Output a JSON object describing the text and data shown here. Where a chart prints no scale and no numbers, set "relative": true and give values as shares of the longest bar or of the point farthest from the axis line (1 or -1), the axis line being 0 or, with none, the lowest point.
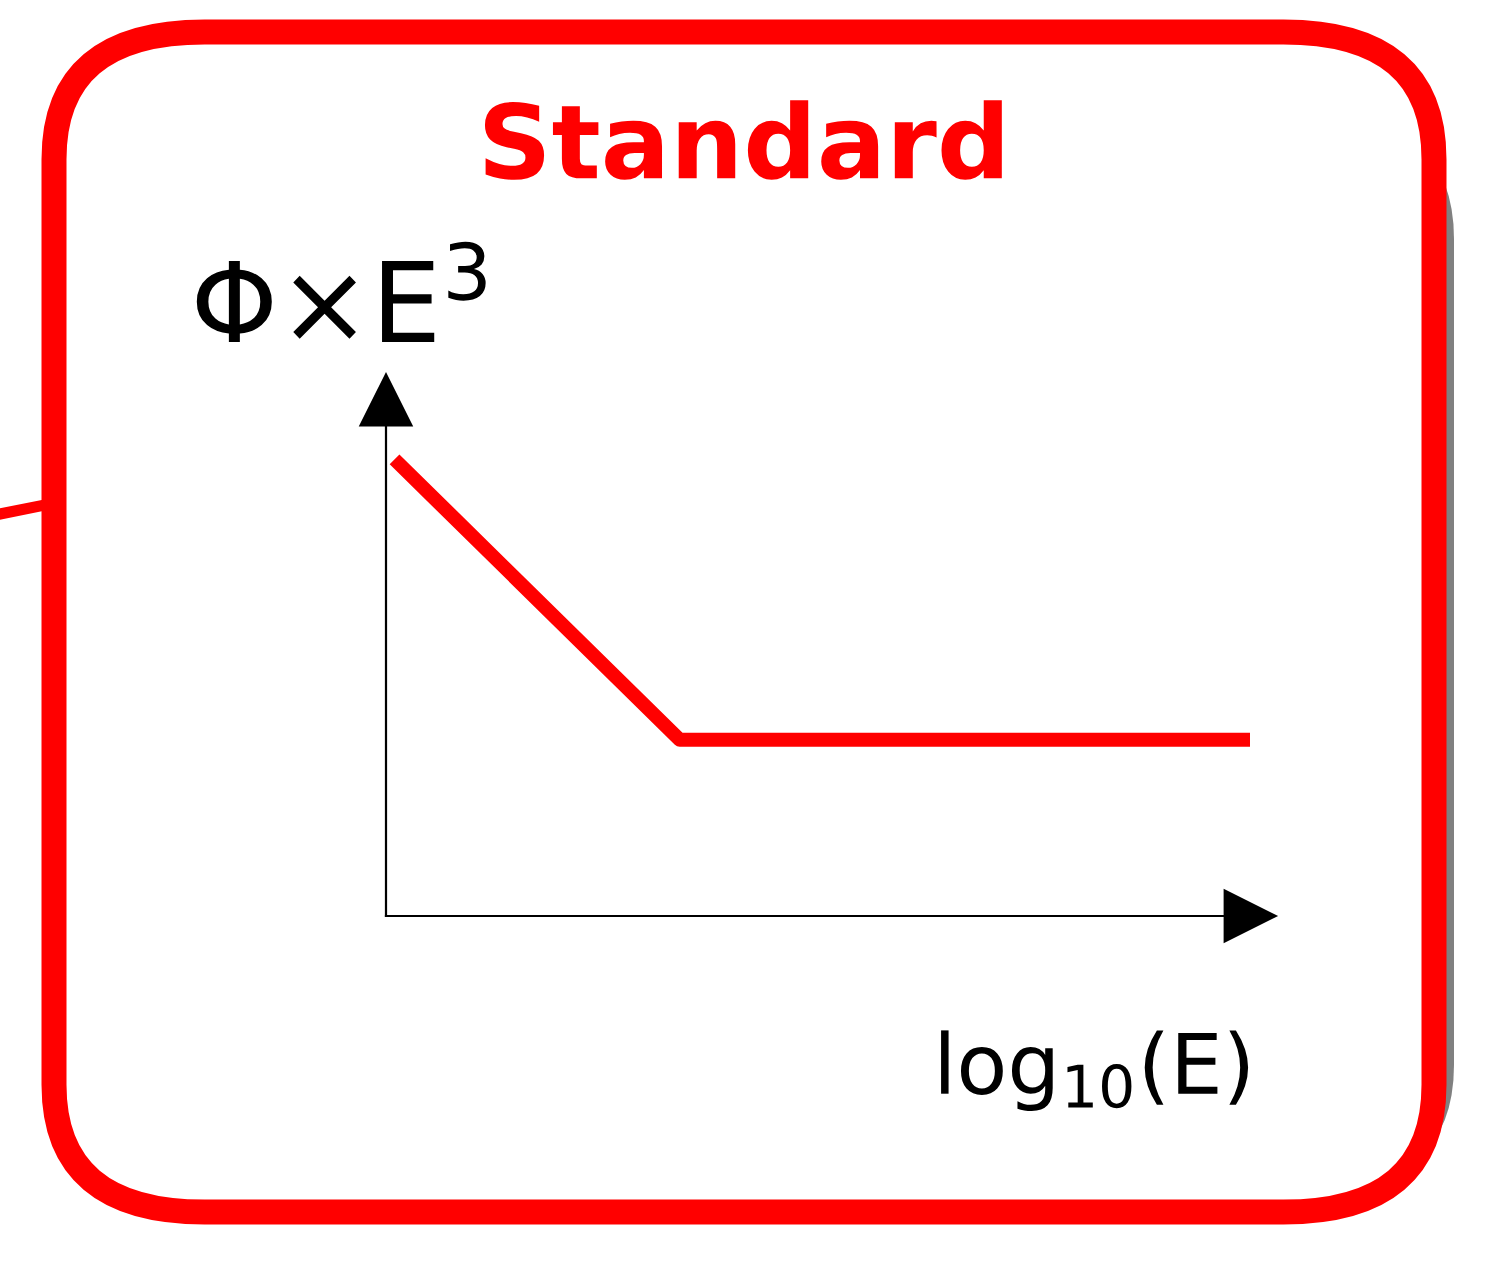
{
  "chart_data": {
    "type": "line",
    "title": "Standard",
    "xlabel": "log$_{10}$(E)",
    "ylabel": "Φ×E$^{3}$",
    "relative": true,
    "categories": [
      null,
      null,
      null,
      null
    ],
    "series": [
      {
        "color": "#ff0000",
        "values": [
          1,
          0.386,
          0.386,
          0.386
        ]
      }
    ],
    "grid": false,
    "legend": false,
    "marker": "none",
    "line_style": "solid"
  }
}
